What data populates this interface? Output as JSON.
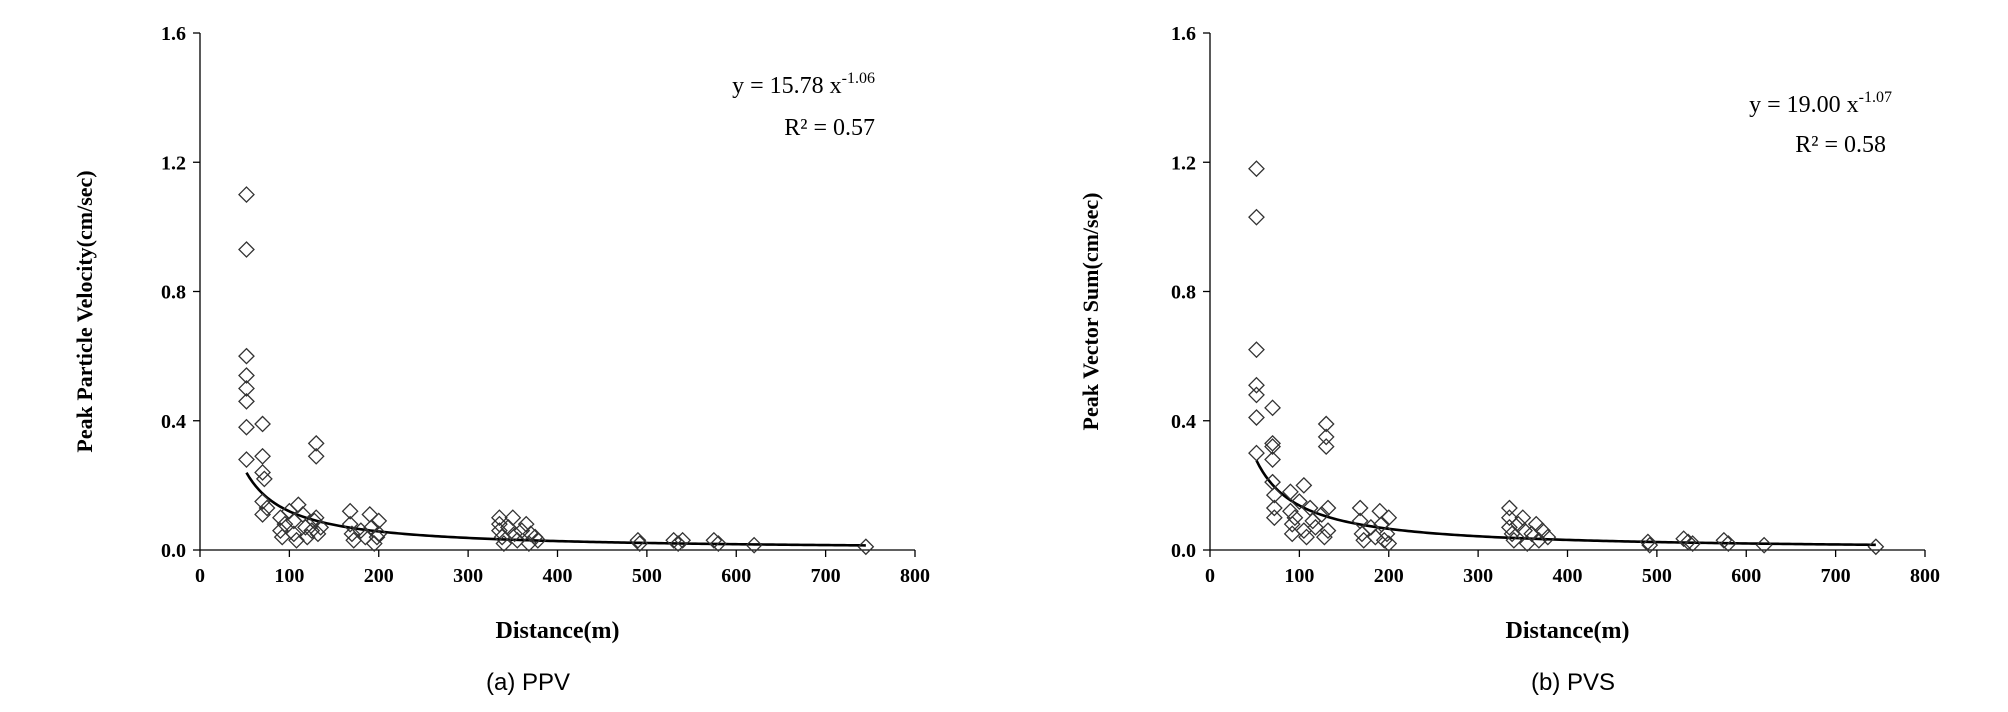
{
  "chart_data": [
    {
      "type": "scatter",
      "panel_caption": "(a) PPV",
      "xlabel": "Distance(m)",
      "ylabel": "Peak Particle Velocity(cm/sec)",
      "xlim": [
        0,
        800
      ],
      "ylim": [
        0.0,
        1.6
      ],
      "xticks": [
        "0",
        "100",
        "200",
        "300",
        "400",
        "500",
        "600",
        "700",
        "800"
      ],
      "yticks": [
        "0.0",
        "0.4",
        "0.8",
        "1.2",
        "1.6"
      ],
      "equation": {
        "prefix": "y = 15.78 x",
        "exponent": "-1.06"
      },
      "r2": "R² = 0.57",
      "trendline": {
        "coef": 15.78,
        "power": -1.06,
        "x_range": [
          52,
          745
        ]
      },
      "points": [
        [
          52,
          1.1
        ],
        [
          52,
          0.93
        ],
        [
          52,
          0.6
        ],
        [
          52,
          0.54
        ],
        [
          52,
          0.5
        ],
        [
          52,
          0.46
        ],
        [
          52,
          0.38
        ],
        [
          52,
          0.28
        ],
        [
          70,
          0.39
        ],
        [
          70,
          0.29
        ],
        [
          70,
          0.24
        ],
        [
          72,
          0.22
        ],
        [
          70,
          0.15
        ],
        [
          70,
          0.11
        ],
        [
          75,
          0.13
        ],
        [
          90,
          0.1
        ],
        [
          90,
          0.06
        ],
        [
          92,
          0.04
        ],
        [
          95,
          0.08
        ],
        [
          100,
          0.12
        ],
        [
          105,
          0.09
        ],
        [
          105,
          0.05
        ],
        [
          108,
          0.03
        ],
        [
          110,
          0.14
        ],
        [
          115,
          0.11
        ],
        [
          118,
          0.07
        ],
        [
          120,
          0.04
        ],
        [
          125,
          0.06
        ],
        [
          128,
          0.09
        ],
        [
          130,
          0.33
        ],
        [
          130,
          0.29
        ],
        [
          130,
          0.1
        ],
        [
          132,
          0.05
        ],
        [
          135,
          0.07
        ],
        [
          168,
          0.12
        ],
        [
          168,
          0.08
        ],
        [
          170,
          0.05
        ],
        [
          172,
          0.03
        ],
        [
          180,
          0.06
        ],
        [
          185,
          0.04
        ],
        [
          190,
          0.11
        ],
        [
          192,
          0.07
        ],
        [
          195,
          0.02
        ],
        [
          198,
          0.04
        ],
        [
          200,
          0.09
        ],
        [
          200,
          0.05
        ],
        [
          335,
          0.1
        ],
        [
          335,
          0.08
        ],
        [
          335,
          0.06
        ],
        [
          338,
          0.04
        ],
        [
          340,
          0.02
        ],
        [
          345,
          0.07
        ],
        [
          350,
          0.1
        ],
        [
          352,
          0.05
        ],
        [
          355,
          0.03
        ],
        [
          360,
          0.06
        ],
        [
          365,
          0.08
        ],
        [
          368,
          0.02
        ],
        [
          370,
          0.05
        ],
        [
          375,
          0.04
        ],
        [
          378,
          0.03
        ],
        [
          490,
          0.03
        ],
        [
          492,
          0.02
        ],
        [
          530,
          0.03
        ],
        [
          535,
          0.02
        ],
        [
          540,
          0.03
        ],
        [
          575,
          0.03
        ],
        [
          580,
          0.02
        ],
        [
          620,
          0.015
        ],
        [
          745,
          0.01
        ]
      ]
    },
    {
      "type": "scatter",
      "panel_caption": "(b) PVS",
      "xlabel": "Distance(m)",
      "ylabel": "Peak Vector Sum(cm/sec)",
      "xlim": [
        0,
        800
      ],
      "ylim": [
        0.0,
        1.6
      ],
      "xticks": [
        "0",
        "100",
        "200",
        "300",
        "400",
        "500",
        "600",
        "700",
        "800"
      ],
      "yticks": [
        "0.0",
        "0.4",
        "0.8",
        "1.2",
        "1.6"
      ],
      "equation": {
        "prefix": "y = 19.00 x",
        "exponent": "-1.07"
      },
      "r2": "R² = 0.58",
      "trendline": {
        "coef": 19.0,
        "power": -1.07,
        "x_range": [
          52,
          745
        ]
      },
      "points": [
        [
          52,
          1.18
        ],
        [
          52,
          1.03
        ],
        [
          52,
          0.62
        ],
        [
          52,
          0.51
        ],
        [
          52,
          0.48
        ],
        [
          52,
          0.41
        ],
        [
          52,
          0.3
        ],
        [
          70,
          0.44
        ],
        [
          70,
          0.33
        ],
        [
          70,
          0.32
        ],
        [
          70,
          0.28
        ],
        [
          70,
          0.21
        ],
        [
          72,
          0.17
        ],
        [
          72,
          0.13
        ],
        [
          72,
          0.1
        ],
        [
          90,
          0.18
        ],
        [
          90,
          0.12
        ],
        [
          92,
          0.08
        ],
        [
          92,
          0.05
        ],
        [
          95,
          0.1
        ],
        [
          100,
          0.15
        ],
        [
          105,
          0.2
        ],
        [
          105,
          0.06
        ],
        [
          108,
          0.04
        ],
        [
          112,
          0.13
        ],
        [
          115,
          0.09
        ],
        [
          118,
          0.07
        ],
        [
          125,
          0.11
        ],
        [
          128,
          0.04
        ],
        [
          130,
          0.39
        ],
        [
          130,
          0.35
        ],
        [
          130,
          0.32
        ],
        [
          132,
          0.13
        ],
        [
          132,
          0.06
        ],
        [
          168,
          0.13
        ],
        [
          168,
          0.09
        ],
        [
          170,
          0.05
        ],
        [
          172,
          0.03
        ],
        [
          180,
          0.07
        ],
        [
          185,
          0.04
        ],
        [
          190,
          0.12
        ],
        [
          192,
          0.08
        ],
        [
          195,
          0.03
        ],
        [
          198,
          0.05
        ],
        [
          200,
          0.1
        ],
        [
          200,
          0.02
        ],
        [
          335,
          0.13
        ],
        [
          335,
          0.1
        ],
        [
          335,
          0.07
        ],
        [
          338,
          0.05
        ],
        [
          340,
          0.03
        ],
        [
          345,
          0.08
        ],
        [
          350,
          0.1
        ],
        [
          352,
          0.06
        ],
        [
          355,
          0.02
        ],
        [
          360,
          0.05
        ],
        [
          365,
          0.08
        ],
        [
          368,
          0.03
        ],
        [
          372,
          0.06
        ],
        [
          378,
          0.04
        ],
        [
          490,
          0.025
        ],
        [
          492,
          0.015
        ],
        [
          530,
          0.035
        ],
        [
          535,
          0.025
        ],
        [
          540,
          0.02
        ],
        [
          575,
          0.03
        ],
        [
          580,
          0.02
        ],
        [
          620,
          0.015
        ],
        [
          745,
          0.01
        ]
      ]
    }
  ]
}
